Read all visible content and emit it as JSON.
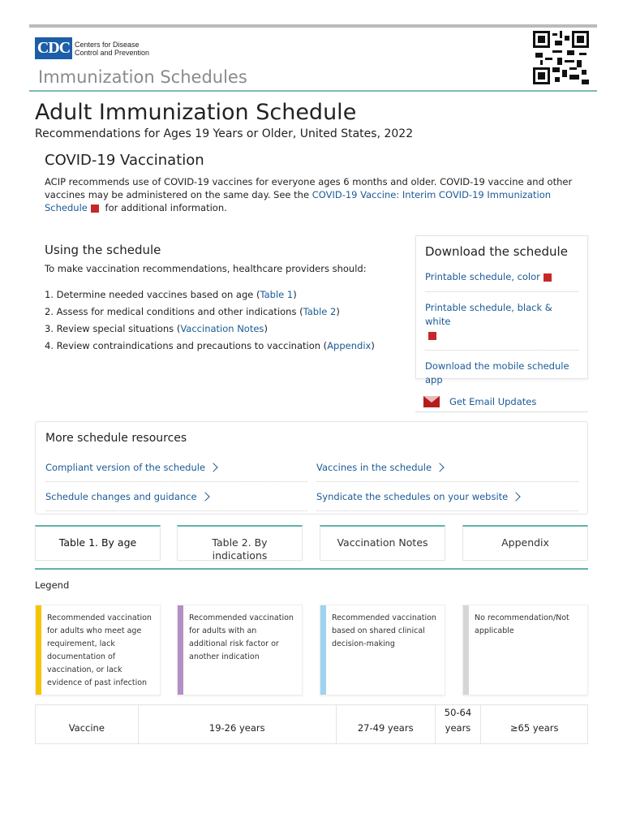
{
  "header": {
    "logo_mark": "CDC",
    "logo_line1": "Centers for Disease",
    "logo_line2": "Control and Prevention",
    "site_title": "Immunization Schedules"
  },
  "page": {
    "title": "Adult Immunization Schedule",
    "subtitle": "Recommendations for Ages 19 Years or Older, United States, 2022"
  },
  "covid": {
    "heading": "COVID-19 Vaccination",
    "text1": "ACIP recommends use of COVID-19 vaccines for everyone ages 6 months and older. COVID-19 vaccine and other vaccines may be administered on the same day. See the ",
    "link": "COVID-19 Vaccine: Interim COVID-19 Immunization Schedule",
    "text2": " for additional information."
  },
  "using": {
    "heading": "Using the schedule",
    "intro": "To make vaccination recommendations, healthcare providers should:",
    "steps": [
      {
        "num": "1.",
        "pre": "Determine needed vaccines ",
        "bold": "based on age",
        "link": "Table 1"
      },
      {
        "num": "2.",
        "pre": "Assess for ",
        "bold": "medical conditions and other indications",
        "link": "Table 2"
      },
      {
        "num": "3.",
        "pre": "Review ",
        "bold": "special situations",
        "link": "Vaccination Notes"
      },
      {
        "num": "4.",
        "pre": "Review ",
        "bold": "contraindications and precautions to vaccination",
        "link": "Appendix"
      }
    ]
  },
  "download": {
    "heading": "Download the schedule",
    "items": [
      "Printable schedule, color",
      "Printable schedule, black & white",
      "Download the mobile schedule app"
    ],
    "email": "Get Email Updates"
  },
  "resources": {
    "heading": "More schedule resources",
    "links": [
      "Compliant version of the schedule",
      "Vaccines in the schedule",
      "Schedule changes and guidance",
      "Syndicate the schedules on your website"
    ]
  },
  "tabs": [
    "Table 1. By age",
    "Table 2. By indications",
    "Vaccination Notes",
    "Appendix"
  ],
  "legend": {
    "label": "Legend",
    "items": [
      {
        "text": "Recommended vaccination for adults who meet age requirement, lack documentation of vaccination, or lack evidence of past infection",
        "color": "#f5c400"
      },
      {
        "text": "Recommended vaccination for adults with an additional risk factor or another indication",
        "color": "#b48fc4"
      },
      {
        "text": "Recommended vaccination based on shared clinical decision-making",
        "color": "#9fd3f0"
      },
      {
        "text": "No recommendation/Not applicable",
        "color": "#d6d6d6"
      }
    ]
  },
  "table": {
    "headers": [
      "Vaccine",
      "19-26 years",
      "27-49 years",
      "50-64 years",
      "≥65 years"
    ]
  }
}
